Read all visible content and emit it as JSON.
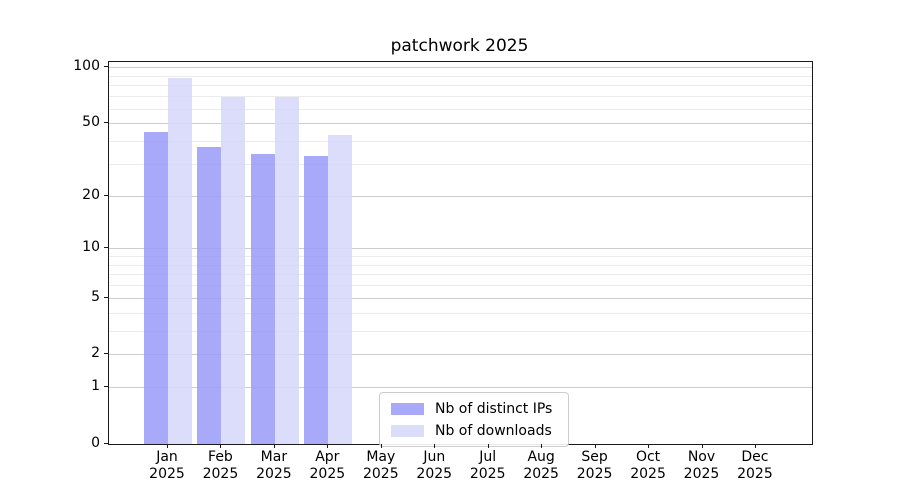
{
  "chart_data": {
    "type": "bar",
    "title": "patchwork 2025",
    "categories": [
      "Jan",
      "Feb",
      "Mar",
      "Apr",
      "May",
      "Jun",
      "Jul",
      "Aug",
      "Sep",
      "Oct",
      "Nov",
      "Dec"
    ],
    "category_year": "2025",
    "series": [
      {
        "name": "Nb of distinct IPs",
        "color": "#9a9af9",
        "alpha": 0.85,
        "values": [
          45,
          37,
          34,
          33,
          0,
          0,
          0,
          0,
          0,
          0,
          0,
          0
        ]
      },
      {
        "name": "Nb of downloads",
        "color": "#d6d6fa",
        "alpha": 0.85,
        "values": [
          88,
          69,
          69,
          43,
          0,
          0,
          0,
          0,
          0,
          0,
          0,
          0
        ]
      }
    ],
    "xlabel": "",
    "ylabel": "",
    "y_scale": "log10(value+1)",
    "y_ticks": [
      100,
      50,
      20,
      10,
      5,
      2,
      1,
      0
    ],
    "y_minor_gridlines": [
      3,
      4,
      6,
      7,
      8,
      9,
      30,
      40,
      60,
      70,
      80,
      90
    ],
    "ylim": [
      0,
      107
    ],
    "grid": true,
    "legend_position": "inside-bottom-center"
  },
  "colors": {
    "major_grid": "#cdcdcd",
    "minor_grid": "#ebebeb",
    "spine": "#1a1a1a",
    "background": "#ffffff"
  }
}
